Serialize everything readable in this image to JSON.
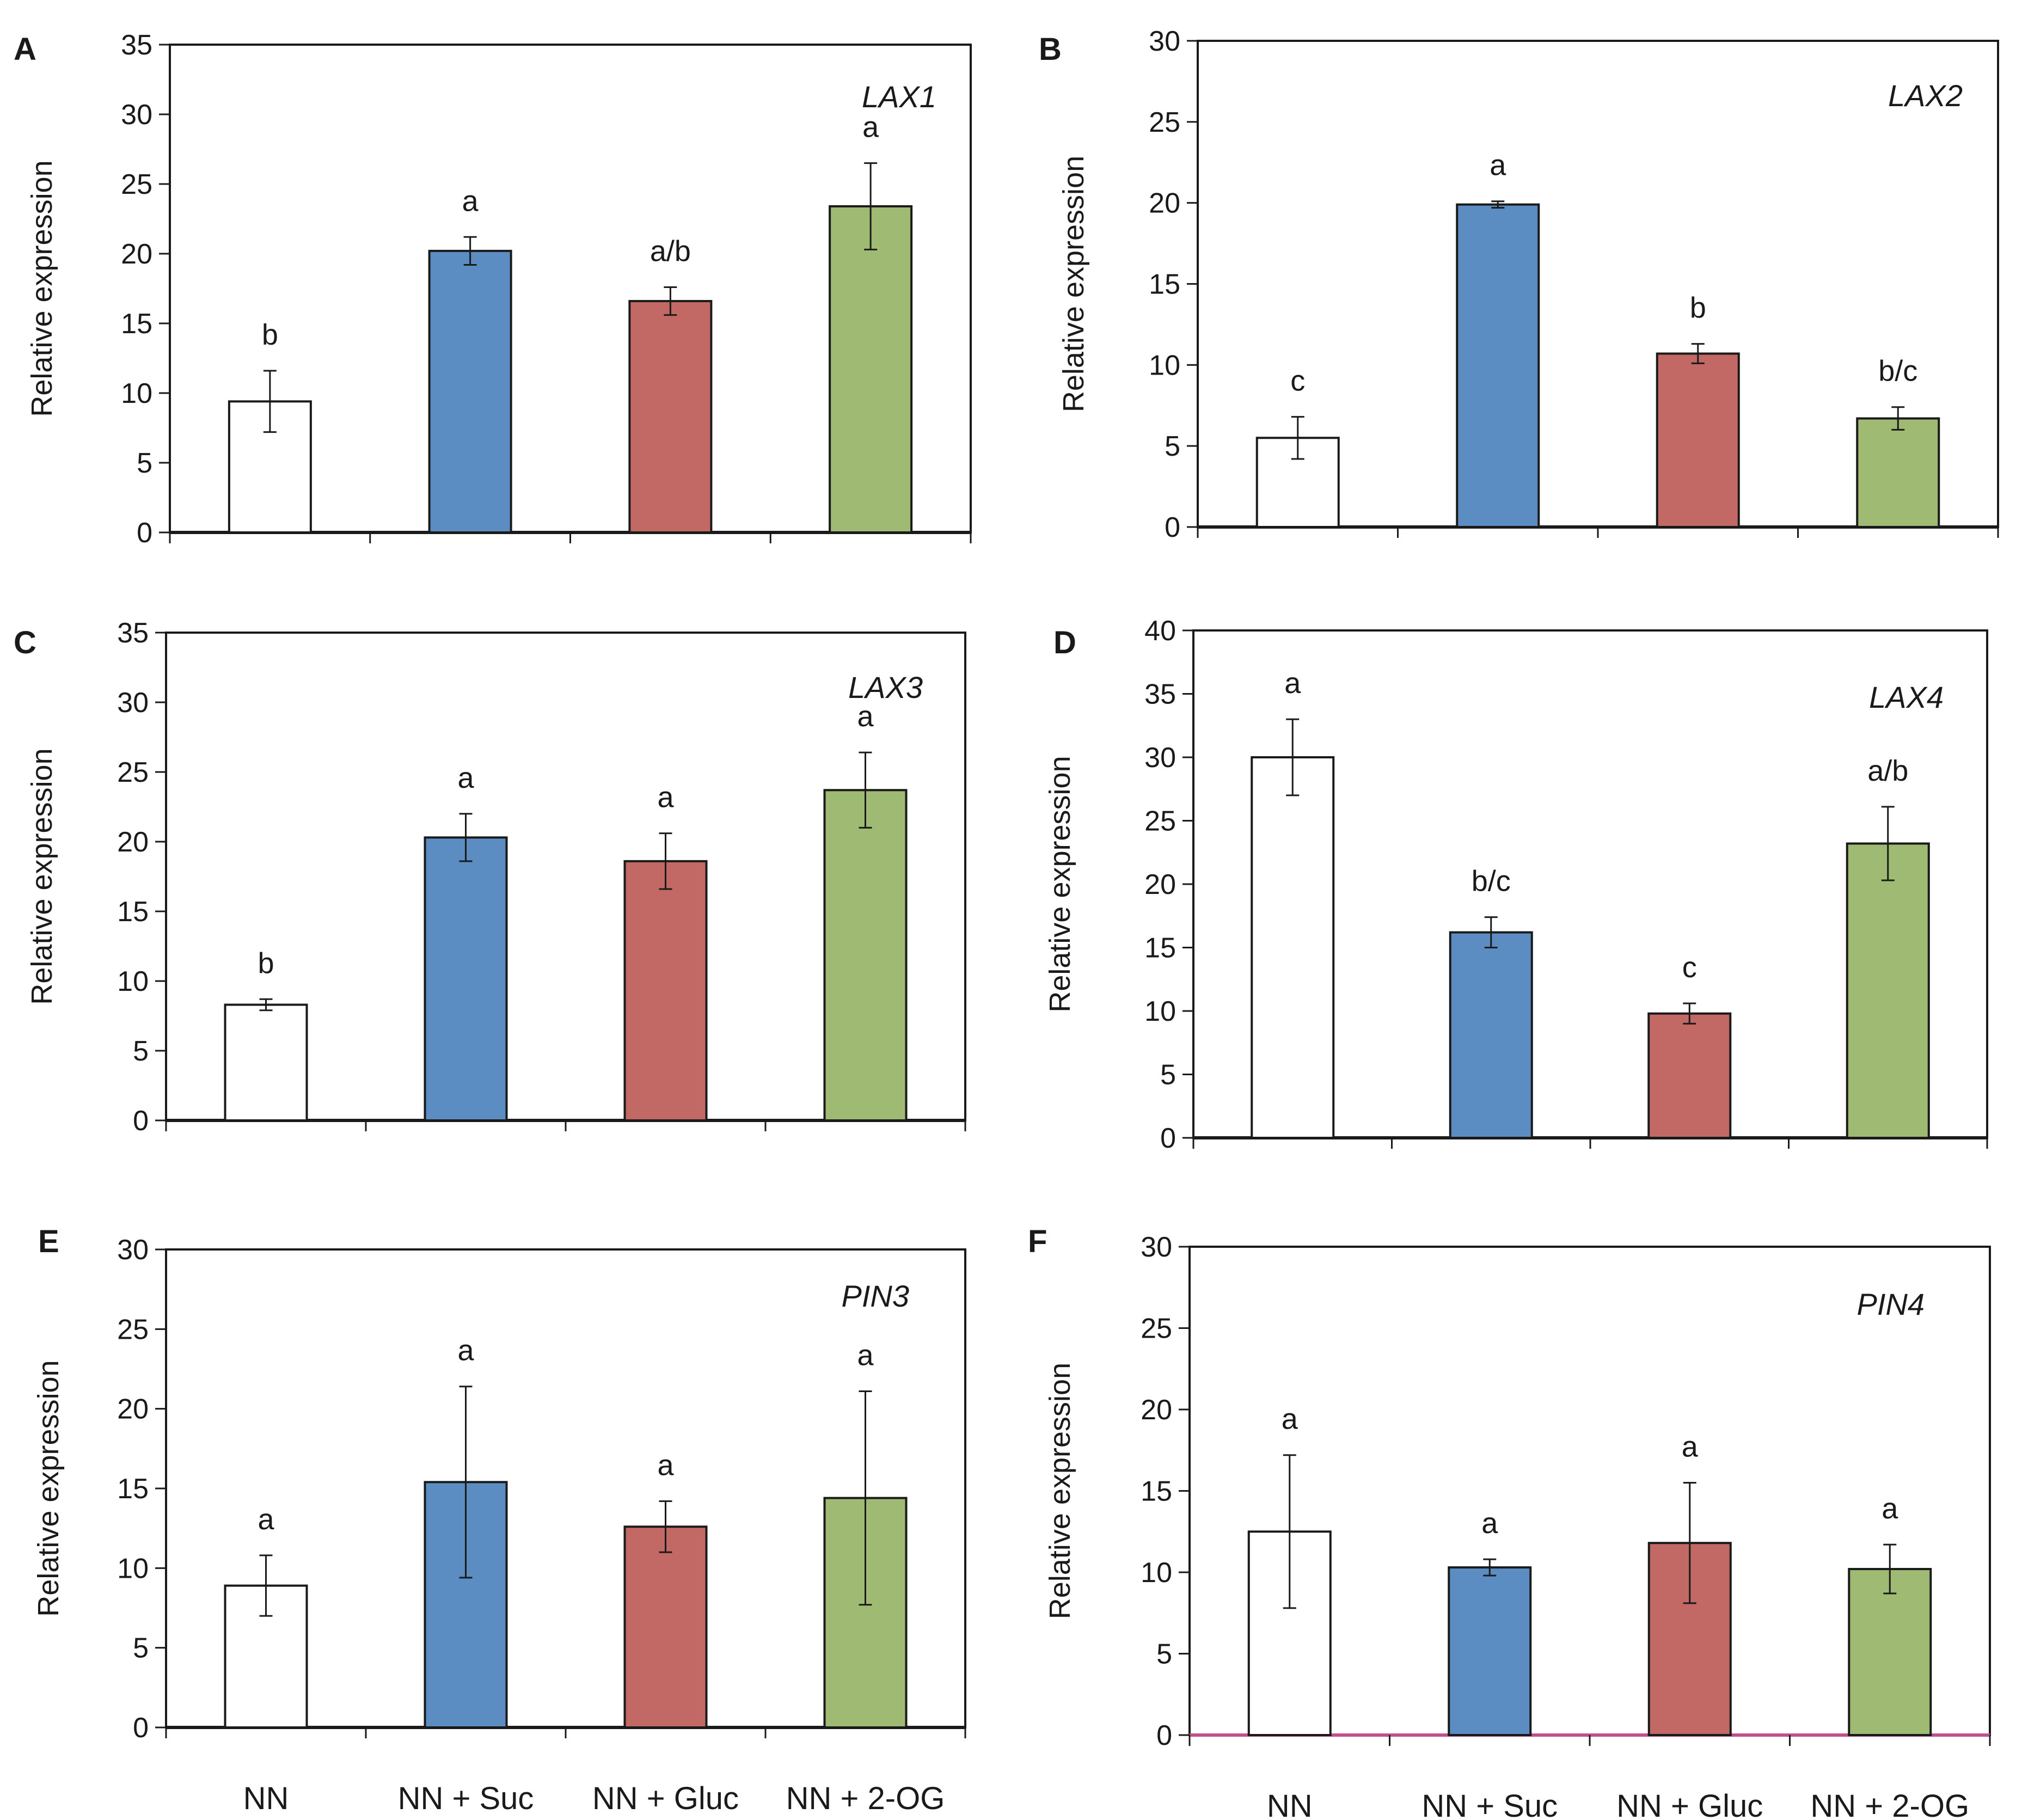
{
  "figure": {
    "category_colors": [
      "#ffffff",
      "#5b8cc2",
      "#c26865",
      "#9fbb73"
    ],
    "axis_color": "#1a1a1a",
    "baseline_color_F": "#c0508c"
  },
  "chart_data": [
    {
      "panel": "A",
      "type": "bar",
      "title": "LAX1",
      "ylabel": "Relative expression",
      "xlabel": "",
      "categories": [
        "NN",
        "NN + Suc",
        "NN + Gluc",
        "NN + 2-OG"
      ],
      "values": [
        9.4,
        20.2,
        16.6,
        23.4
      ],
      "errors": [
        2.2,
        1.0,
        1.0,
        3.1
      ],
      "significance": [
        "b",
        "a",
        "a/b",
        "a"
      ],
      "ylim": [
        0,
        35
      ],
      "yticks": [
        0,
        5,
        10,
        15,
        20,
        25,
        30,
        35
      ],
      "show_category_labels": false,
      "grid": false,
      "legend": "none"
    },
    {
      "panel": "B",
      "type": "bar",
      "title": "LAX2",
      "ylabel": "Relative expression",
      "xlabel": "",
      "categories": [
        "NN",
        "NN + Suc",
        "NN + Gluc",
        "NN + 2-OG"
      ],
      "values": [
        5.5,
        19.9,
        10.7,
        6.7
      ],
      "errors": [
        1.3,
        0.2,
        0.6,
        0.7
      ],
      "significance": [
        "c",
        "a",
        "b",
        "b/c"
      ],
      "ylim": [
        0,
        30
      ],
      "yticks": [
        0,
        5,
        10,
        15,
        20,
        25,
        30
      ],
      "show_category_labels": false,
      "grid": false,
      "legend": "none"
    },
    {
      "panel": "C",
      "type": "bar",
      "title": "LAX3",
      "ylabel": "Relative expression",
      "xlabel": "",
      "categories": [
        "NN",
        "NN + Suc",
        "NN + Gluc",
        "NN + 2-OG"
      ],
      "values": [
        8.3,
        20.3,
        18.6,
        23.7
      ],
      "errors": [
        0.4,
        1.7,
        2.0,
        2.7
      ],
      "significance": [
        "b",
        "a",
        "a",
        "a"
      ],
      "ylim": [
        0,
        35
      ],
      "yticks": [
        0,
        5,
        10,
        15,
        20,
        25,
        30,
        35
      ],
      "show_category_labels": false,
      "grid": false,
      "legend": "none"
    },
    {
      "panel": "D",
      "type": "bar",
      "title": "LAX4",
      "ylabel": "Relative expression",
      "xlabel": "",
      "categories": [
        "NN",
        "NN + Suc",
        "NN + Gluc",
        "NN + 2-OG"
      ],
      "values": [
        30.0,
        16.2,
        9.8,
        23.2
      ],
      "errors": [
        3.0,
        1.2,
        0.8,
        2.9
      ],
      "significance": [
        "a",
        "b/c",
        "c",
        "a/b"
      ],
      "ylim": [
        0,
        40
      ],
      "yticks": [
        0,
        5,
        10,
        15,
        20,
        25,
        30,
        35,
        40
      ],
      "show_category_labels": false,
      "grid": false,
      "legend": "none"
    },
    {
      "panel": "E",
      "type": "bar",
      "title": "PIN3",
      "ylabel": "Relative expression",
      "xlabel": "",
      "categories": [
        "NN",
        "NN + Suc",
        "NN + Gluc",
        "NN + 2-OG"
      ],
      "values": [
        8.9,
        15.4,
        12.6,
        14.4
      ],
      "errors": [
        1.9,
        6.0,
        1.6,
        6.7
      ],
      "significance": [
        "a",
        "a",
        "a",
        "a"
      ],
      "ylim": [
        0,
        30
      ],
      "yticks": [
        0,
        5,
        10,
        15,
        20,
        25,
        30
      ],
      "show_category_labels": true,
      "grid": false,
      "legend": "none"
    },
    {
      "panel": "F",
      "type": "bar",
      "title": "PIN4",
      "ylabel": "Relative expression",
      "xlabel": "",
      "categories": [
        "NN",
        "NN + Suc",
        "NN + Gluc",
        "NN + 2-OG"
      ],
      "values": [
        12.5,
        10.3,
        11.8,
        10.2
      ],
      "errors": [
        4.7,
        0.5,
        3.7,
        1.5
      ],
      "significance": [
        "a",
        "a",
        "a",
        "a"
      ],
      "ylim": [
        0,
        30
      ],
      "yticks": [
        0,
        5,
        10,
        15,
        20,
        25,
        30
      ],
      "show_category_labels": true,
      "grid": false,
      "legend": "none"
    }
  ]
}
